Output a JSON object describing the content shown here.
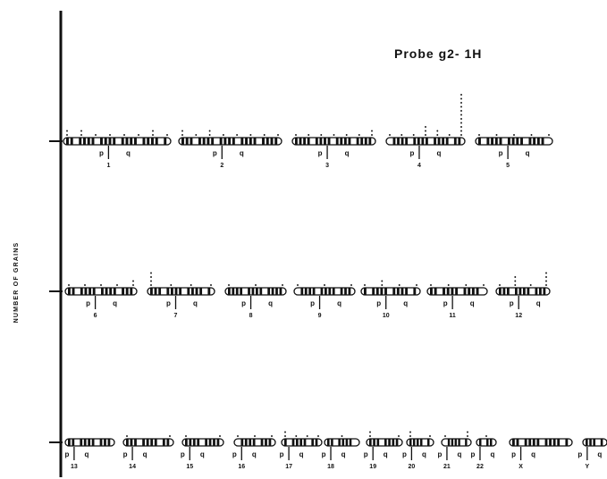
{
  "title": "Probe g2- 1H",
  "y_axis_label": "NUMBER OF GRAINS",
  "rows": [
    {
      "chromosomes": [
        {
          "name": "1",
          "arms": [
            "p",
            "q"
          ],
          "grains": [
            2,
            2,
            1,
            1,
            1,
            1,
            2,
            1
          ]
        },
        {
          "name": "2",
          "arms": [
            "p",
            "q"
          ],
          "grains": [
            2,
            1,
            2,
            1,
            1,
            1,
            1,
            1
          ]
        },
        {
          "name": "3",
          "arms": [
            "p",
            "q"
          ],
          "grains": [
            1,
            1,
            1,
            1,
            1,
            1,
            2
          ]
        },
        {
          "name": "4",
          "arms": [
            "p",
            "q"
          ],
          "grains": [
            1,
            1,
            1,
            3,
            2,
            1,
            11
          ]
        },
        {
          "name": "5",
          "arms": [
            "p",
            "q"
          ],
          "grains": [
            1,
            1,
            1,
            1,
            1
          ]
        }
      ]
    },
    {
      "chromosomes": [
        {
          "name": "6",
          "arms": [
            "p",
            "q"
          ],
          "grains": [
            1,
            1,
            1,
            1,
            2
          ]
        },
        {
          "name": "7",
          "arms": [
            "p",
            "q"
          ],
          "grains": [
            4,
            1,
            1,
            1
          ]
        },
        {
          "name": "8",
          "arms": [
            "p",
            "q"
          ],
          "grains": [
            1,
            1,
            1
          ]
        },
        {
          "name": "9",
          "arms": [
            "p",
            "q"
          ],
          "grains": [
            1,
            1,
            1
          ]
        },
        {
          "name": "10",
          "arms": [
            "p",
            "q"
          ],
          "grains": [
            1,
            2,
            1,
            1
          ]
        },
        {
          "name": "11",
          "arms": [
            "p",
            "q"
          ],
          "grains": [
            1,
            1,
            1,
            1
          ]
        },
        {
          "name": "12",
          "arms": [
            "p",
            "q"
          ],
          "grains": [
            1,
            3,
            1,
            4
          ]
        }
      ]
    },
    {
      "chromosomes": [
        {
          "name": "13",
          "arms": [
            "p",
            "q"
          ],
          "grains": []
        },
        {
          "name": "14",
          "arms": [
            "p",
            "q"
          ],
          "grains": [
            1,
            1
          ]
        },
        {
          "name": "15",
          "arms": [
            "p",
            "q"
          ],
          "grains": [
            1,
            1
          ]
        },
        {
          "name": "16",
          "arms": [
            "p",
            "q"
          ],
          "grains": [
            1,
            1,
            1
          ]
        },
        {
          "name": "17",
          "arms": [
            "p",
            "q"
          ],
          "grains": [
            2,
            1,
            1,
            1
          ]
        },
        {
          "name": "18",
          "arms": [
            "p",
            "q"
          ],
          "grains": [
            1
          ]
        },
        {
          "name": "19",
          "arms": [
            "p",
            "q"
          ],
          "grains": [
            2,
            1
          ]
        },
        {
          "name": "20",
          "arms": [
            "p",
            "q"
          ],
          "grains": [
            2,
            1
          ]
        },
        {
          "name": "21",
          "arms": [
            "p",
            "q"
          ],
          "grains": [
            1,
            2
          ]
        },
        {
          "name": "22",
          "arms": [
            "p",
            "q"
          ],
          "grains": [
            1
          ]
        },
        {
          "name": "X",
          "arms": [
            "p",
            "q"
          ],
          "grains": []
        },
        {
          "name": "Y",
          "arms": [
            "p",
            "q"
          ],
          "grains": []
        }
      ]
    }
  ]
}
